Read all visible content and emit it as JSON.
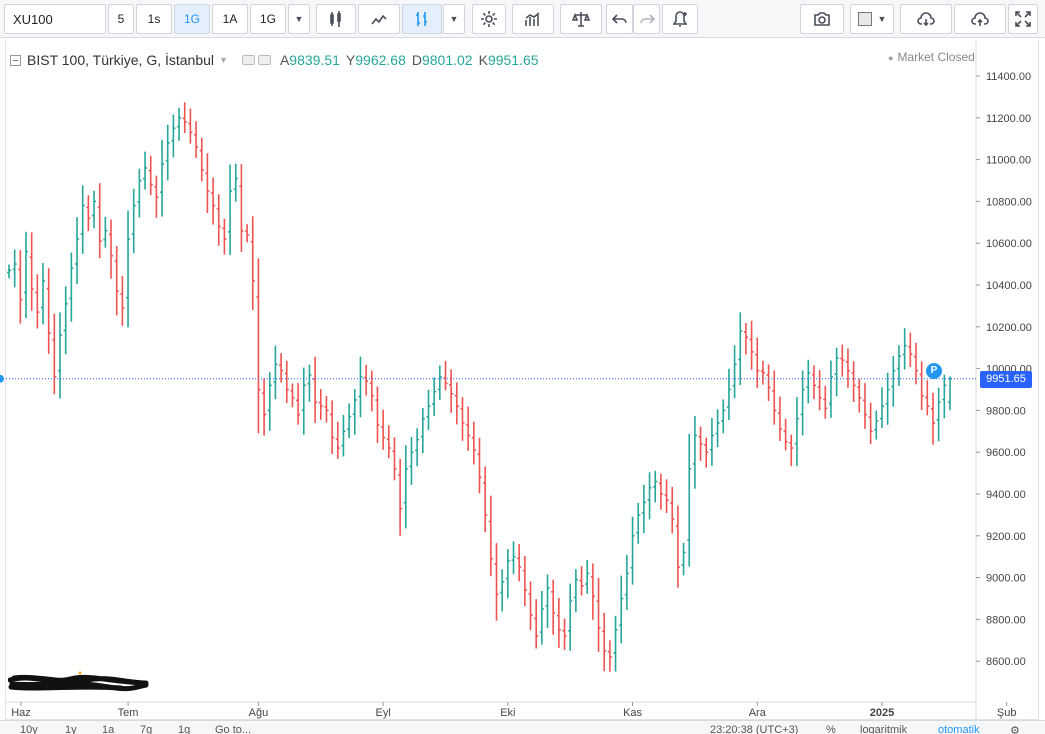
{
  "toolbar": {
    "symbol": "XU100",
    "intervals": [
      "5",
      "1s",
      "1G",
      "1A",
      "1G"
    ],
    "active_interval_index": 2,
    "icons": [
      "candles-icon",
      "area-icon",
      "bars-icon",
      "gear-icon",
      "indicators-icon",
      "compare-icon",
      "undo-icon",
      "redo-icon",
      "alert-icon",
      "camera-icon",
      "color-box-icon",
      "cloud-download-icon",
      "cloud-upload-icon",
      "fullscreen-icon"
    ]
  },
  "legend": {
    "title": "BIST 100, Türkiye, G, İstanbul",
    "open_label": "A",
    "open": "9839.51",
    "high_label": "Y",
    "high": "9962.68",
    "low_label": "D",
    "low": "9801.02",
    "close_label": "K",
    "close": "9951.65"
  },
  "market_status": "Market Closed",
  "last_price_label": "9951.65",
  "marker_label": "P",
  "bottombar": {
    "ranges": [
      "10y",
      "1y",
      "1a",
      "7g",
      "1g",
      "Go to..."
    ],
    "time": "23:20:38 (UTC+3)",
    "percent": "%",
    "log": "logaritmik",
    "auto": "otomatik"
  },
  "colors": {
    "up": "#26a69a",
    "down": "#ef5350",
    "price_line": "#2962ff",
    "accent": "#2196f3"
  },
  "chart_data": {
    "type": "ohlc-bar",
    "y_ticks": [
      11400,
      11200,
      11000,
      10800,
      10600,
      10400,
      10200,
      10000,
      9800,
      9600,
      9400,
      9200,
      9000,
      8800,
      8600
    ],
    "ylim": [
      8400,
      11500
    ],
    "x_ticks": [
      {
        "label": "Haz",
        "index": 0
      },
      {
        "label": "Tem",
        "index": 21
      },
      {
        "label": "Ağu",
        "index": 44
      },
      {
        "label": "Eyl",
        "index": 66
      },
      {
        "label": "Eki",
        "index": 88
      },
      {
        "label": "Kas",
        "index": 110
      },
      {
        "label": "Ara",
        "index": 132
      },
      {
        "label": "2025",
        "index": 154
      },
      {
        "label": "Şub",
        "index": 176
      }
    ],
    "last_price": 9951.65,
    "closes": [
      10470,
      10500,
      10330,
      10560,
      10380,
      10270,
      10420,
      10170,
      9960,
      10160,
      10310,
      10480,
      10620,
      10780,
      10720,
      10800,
      10610,
      10660,
      10540,
      10370,
      10290,
      10620,
      10780,
      10900,
      10960,
      10880,
      10820,
      10980,
      11080,
      11150,
      11200,
      11180,
      11130,
      11060,
      10950,
      10850,
      10780,
      10680,
      10620,
      10850,
      10910,
      10660,
      10640,
      10420,
      9900,
      9780,
      9920,
      10020,
      9990,
      9900,
      9860,
      9780,
      9920,
      9970,
      9840,
      9820,
      9800,
      9670,
      9620,
      9700,
      9770,
      9850,
      9960,
      9940,
      9870,
      9730,
      9670,
      9620,
      9520,
      9330,
      9520,
      9600,
      9660,
      9760,
      9820,
      9890,
      9960,
      9930,
      9880,
      9820,
      9740,
      9680,
      9610,
      9480,
      9300,
      9090,
      8920,
      8980,
      9080,
      9100,
      9050,
      8940,
      8820,
      8720,
      8850,
      8950,
      8830,
      8750,
      8720,
      8890,
      8990,
      8960,
      9020,
      8910,
      8760,
      8650,
      8620,
      8750,
      8900,
      9020,
      9200,
      9300,
      9360,
      9430,
      9460,
      9400,
      9370,
      9280,
      9050,
      9120,
      9520,
      9680,
      9640,
      9600,
      9680,
      9740,
      9800,
      9900,
      10020,
      10180,
      10150,
      10080,
      9990,
      9980,
      9910,
      9800,
      9710,
      9650,
      9620,
      9760,
      9900,
      9980,
      9920,
      9860,
      9810,
      9960,
      10050,
      10040,
      9990,
      9920,
      9860,
      9780,
      9700,
      9750,
      9820,
      9900,
      9990,
      10060,
      10110,
      10070,
      9990,
      9870,
      9820,
      9740,
      9840,
      9920
    ],
    "bars": [
      {
        "i": 0,
        "o": 10460,
        "h": 10560,
        "l": 10350,
        "c": 10470
      },
      {
        "i": 177,
        "o": 9839.51,
        "h": 9962.68,
        "l": 9801.02,
        "c": 9951.65
      }
    ]
  }
}
